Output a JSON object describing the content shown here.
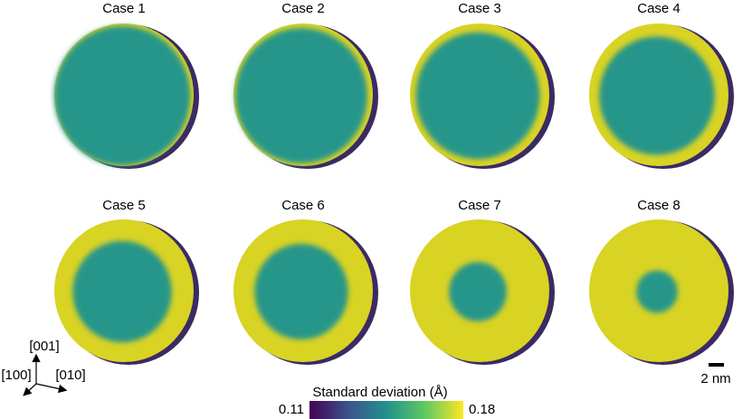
{
  "panels": [
    {
      "title": "Case 1"
    },
    {
      "title": "Case 2"
    },
    {
      "title": "Case 3"
    },
    {
      "title": "Case 4"
    },
    {
      "title": "Case 5"
    },
    {
      "title": "Case 6"
    },
    {
      "title": "Case 7"
    },
    {
      "title": "Case 8"
    }
  ],
  "colorbar": {
    "label": "Standard deviation (Å)",
    "min": 0.11,
    "max": 0.18
  },
  "orientation": {
    "up": "[001]",
    "left": "[100]",
    "right": "[010]"
  },
  "scale_bar": "2 nm"
}
